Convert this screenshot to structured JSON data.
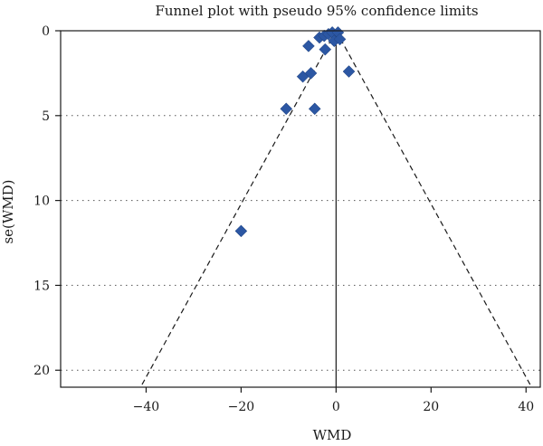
{
  "chart_data": {
    "type": "scatter",
    "title": "Funnel plot with pseudo 95% confidence limits",
    "xlabel": "WMD",
    "ylabel": "se(WMD)",
    "xlim": [
      -58,
      43
    ],
    "ylim": [
      0,
      21
    ],
    "y_inverted": true,
    "grid": "horizontal dotted",
    "x_ticks": [
      -40,
      -20,
      0,
      20,
      40
    ],
    "y_ticks": [
      0,
      5,
      10,
      15,
      20
    ],
    "x_tick_labels": [
      "−40",
      "−20",
      "0",
      "20",
      "40"
    ],
    "y_tick_labels": [
      "0",
      "5",
      "10",
      "15",
      "20"
    ],
    "pooled_estimate": 0,
    "confidence_limit_multiplier": 1.96,
    "marker": "diamond",
    "marker_color": "#2c57a3",
    "points": [
      {
        "x": -20.0,
        "y": 11.8
      },
      {
        "x": -10.5,
        "y": 4.6
      },
      {
        "x": -4.5,
        "y": 4.6
      },
      {
        "x": -7.0,
        "y": 2.7
      },
      {
        "x": -5.3,
        "y": 2.5
      },
      {
        "x": -5.8,
        "y": 0.9
      },
      {
        "x": -3.5,
        "y": 0.4
      },
      {
        "x": -2.5,
        "y": 0.3
      },
      {
        "x": -2.3,
        "y": 1.1
      },
      {
        "x": -1.6,
        "y": 0.2
      },
      {
        "x": -0.8,
        "y": 0.1
      },
      {
        "x": -0.4,
        "y": 0.6
      },
      {
        "x": 0.4,
        "y": 0.1
      },
      {
        "x": 0.8,
        "y": 0.5
      },
      {
        "x": 2.7,
        "y": 2.4
      }
    ]
  }
}
